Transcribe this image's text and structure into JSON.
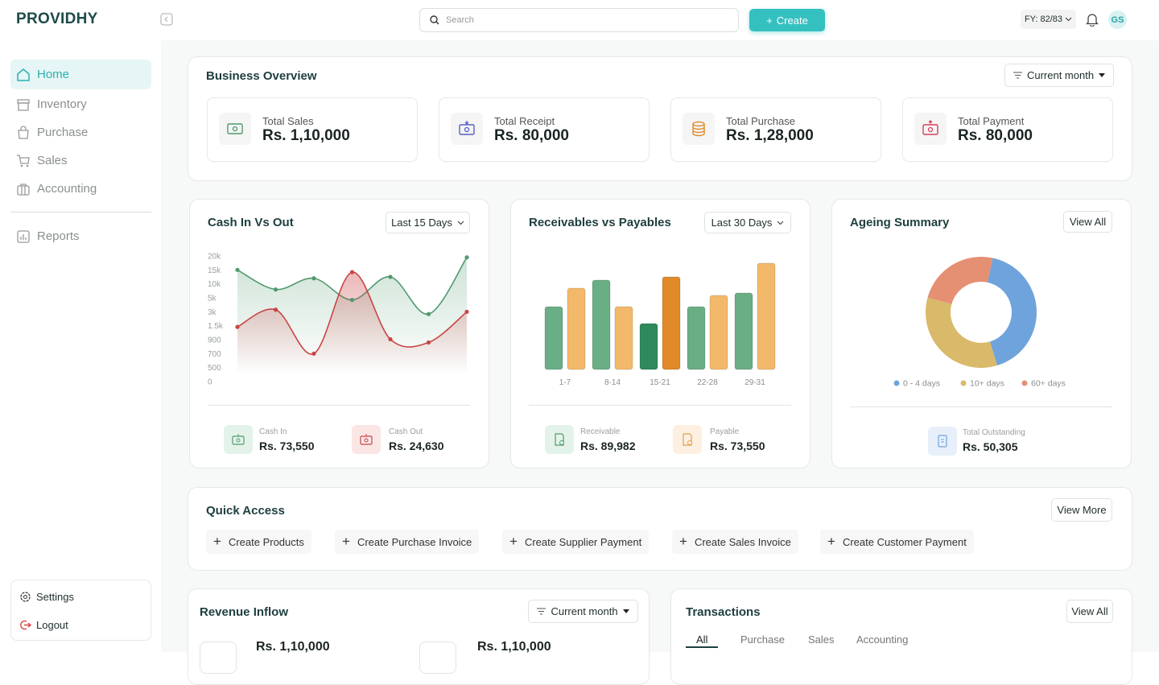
{
  "brand": "PROVIDHY",
  "nav": {
    "items": [
      "Home",
      "Inventory",
      "Purchase",
      "Sales",
      "Accounting",
      "Reports"
    ],
    "settings": "Settings",
    "logout": "Logout"
  },
  "topbar": {
    "search_placeholder": "Search",
    "create": "Create",
    "fiscal_year": "FY: 82/83",
    "avatar": "GS"
  },
  "business_overview": {
    "title": "Business Overview",
    "filter": "Current month",
    "cards": [
      {
        "label": "Total Sales",
        "value": "Rs. 1,10,000"
      },
      {
        "label": "Total Receipt",
        "value": "Rs. 80,000"
      },
      {
        "label": "Total Purchase",
        "value": "Rs. 1,28,000"
      },
      {
        "label": "Total Payment",
        "value": "Rs. 80,000"
      }
    ]
  },
  "cash_in_out": {
    "title": "Cash In Vs Out",
    "filter": "Last 15 Days",
    "summary": [
      {
        "label": "Cash In",
        "value": "Rs. 73,550"
      },
      {
        "label": "Cash Out",
        "value": "Rs. 24,630"
      }
    ]
  },
  "receivables_payables": {
    "title": "Receivables vs Payables",
    "filter": "Last 30 Days",
    "summary": [
      {
        "label": "Receivable",
        "value": "Rs. 89,982"
      },
      {
        "label": "Payable",
        "value": "Rs. 73,550"
      }
    ]
  },
  "ageing_summary": {
    "title": "Ageing Summary",
    "action": "View All",
    "total_label": "Total Outstanding",
    "total": "Rs. 50,305"
  },
  "quick_access": {
    "title": "Quick Access",
    "action": "View More",
    "items": [
      "Create Products",
      "Create Purchase Invoice",
      "Create Supplier Payment",
      "Create Sales Invoice",
      "Create Customer Payment"
    ]
  },
  "revenue_inflow": {
    "title": "Revenue Inflow",
    "filter": "Current month",
    "amounts": [
      "Rs. 1,10,000",
      "Rs. 1,10,000"
    ]
  },
  "transactions": {
    "title": "Transactions",
    "action": "View All",
    "tabs": [
      "All",
      "Purchase",
      "Sales",
      "Accounting"
    ]
  },
  "chart_data": [
    {
      "type": "line",
      "categories": [
        null,
        null,
        null,
        null,
        null,
        null,
        null
      ],
      "ylim": [
        0,
        20000
      ],
      "yticks": [
        0,
        500,
        700,
        900,
        {
          "value": 1500,
          "label": "1.5k"
        },
        {
          "value": 3000,
          "label": "3k"
        },
        {
          "value": 5000,
          "label": "5k"
        },
        {
          "value": 10000,
          "label": "10k"
        },
        {
          "value": 15000,
          "label": "15k"
        },
        {
          "value": 20000,
          "label": "20k"
        }
      ],
      "series": [
        {
          "color": "#4f9a6e",
          "values": [
            15000,
            8000,
            12000,
            4700,
            12500,
            2750,
            19500
          ]
        },
        {
          "color": "#c94545",
          "values": [
            1450,
            3300,
            700,
            14200,
            920,
            860,
            3000
          ]
        }
      ]
    },
    {
      "type": "bar",
      "categories": [
        "1-7",
        "8-14",
        "15-21",
        "22-28",
        "29-31"
      ],
      "series": [
        {
          "color": "#6aae85",
          "colors": [
            "#6aae85",
            "#6aae85",
            "#2e8a5a",
            "#6aae85",
            "#6aae85"
          ],
          "values": [
            78,
            111,
            57,
            78,
            95
          ]
        },
        {
          "color": "#f3b96a",
          "colors": [
            "#f3b96a",
            "#f3b96a",
            "#e08a2a",
            "#f3b96a",
            "#f3b96a"
          ],
          "values": [
            101,
            78,
            115,
            92,
            132
          ]
        }
      ]
    },
    {
      "type": "pie",
      "donut": true,
      "categories": [
        "0 - 4 days",
        "10+ days",
        "60+ days"
      ],
      "values": [
        42,
        34,
        24
      ],
      "colors": [
        "#6fa3dc",
        "#d9b96a",
        "#e58f73"
      ]
    }
  ]
}
